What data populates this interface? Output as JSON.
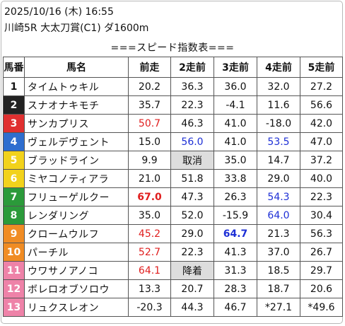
{
  "header": {
    "datetime": "2025/10/16 (木) 16:55",
    "race": "川崎5R 大太刀賞(C1) ダ1600m",
    "table_title": "===スピード指数表==="
  },
  "columns": [
    "馬番",
    "馬名",
    "前走",
    "2走前",
    "3走前",
    "4走前",
    "5走前"
  ],
  "colors": {
    "red": "#e01e1e",
    "blue": "#1d2fd6",
    "gray_cell": "#dddddd",
    "waku": [
      "#ffffff",
      "#222222",
      "#e03030",
      "#2e6ecf",
      "#f2d21b",
      "#2b9a3a",
      "#f08c24",
      "#ee82a8"
    ]
  },
  "rows": [
    {
      "num": "1",
      "name": "タイムトゥキル",
      "p1": "20.2",
      "p2": "36.3",
      "p3": "36.0",
      "p4": "32.0",
      "p5": "27.2"
    },
    {
      "num": "2",
      "name": "スナオナキモチ",
      "p1": "35.7",
      "p2": "22.3",
      "p3": "-4.1",
      "p4": "11.6",
      "p5": "56.6"
    },
    {
      "num": "3",
      "name": "サンカプリス",
      "p1": "50.7",
      "p2": "46.3",
      "p3": "41.0",
      "p4": "-18.0",
      "p5": "42.0"
    },
    {
      "num": "4",
      "name": "ヴェルデヴェント",
      "p1": "15.0",
      "p2": "56.0",
      "p3": "41.0",
      "p4": "53.5",
      "p5": "47.0"
    },
    {
      "num": "5",
      "name": "ブラッドライン",
      "p1": "9.9",
      "p2": "取消",
      "p3": "35.0",
      "p4": "14.7",
      "p5": "37.2"
    },
    {
      "num": "6",
      "name": "ミヤコノティアラ",
      "p1": "21.0",
      "p2": "51.8",
      "p3": "33.8",
      "p4": "29.0",
      "p5": "40.0"
    },
    {
      "num": "7",
      "name": "フリューゲルクー",
      "p1": "67.0",
      "p2": "47.3",
      "p3": "26.3",
      "p4": "54.3",
      "p5": "22.3"
    },
    {
      "num": "8",
      "name": "レンダリング",
      "p1": "35.0",
      "p2": "52.0",
      "p3": "-15.9",
      "p4": "64.0",
      "p5": "30.4"
    },
    {
      "num": "9",
      "name": "クロームウルフ",
      "p1": "45.2",
      "p2": "29.0",
      "p3": "64.7",
      "p4": "21.3",
      "p5": "56.3"
    },
    {
      "num": "10",
      "name": "パーチル",
      "p1": "52.7",
      "p2": "22.3",
      "p3": "41.3",
      "p4": "37.0",
      "p5": "26.7"
    },
    {
      "num": "11",
      "name": "ウワサノアノコ",
      "p1": "64.1",
      "p2": "降着",
      "p3": "31.3",
      "p4": "18.5",
      "p5": "29.7"
    },
    {
      "num": "12",
      "name": "ボレロオブソロウ",
      "p1": "13.3",
      "p2": "20.7",
      "p3": "28.3",
      "p4": "18.7",
      "p5": "20.6"
    },
    {
      "num": "13",
      "name": "リュクスレオン",
      "p1": "-20.3",
      "p2": "44.3",
      "p3": "46.7",
      "p4": "*27.1",
      "p5": "*49.6"
    }
  ]
}
